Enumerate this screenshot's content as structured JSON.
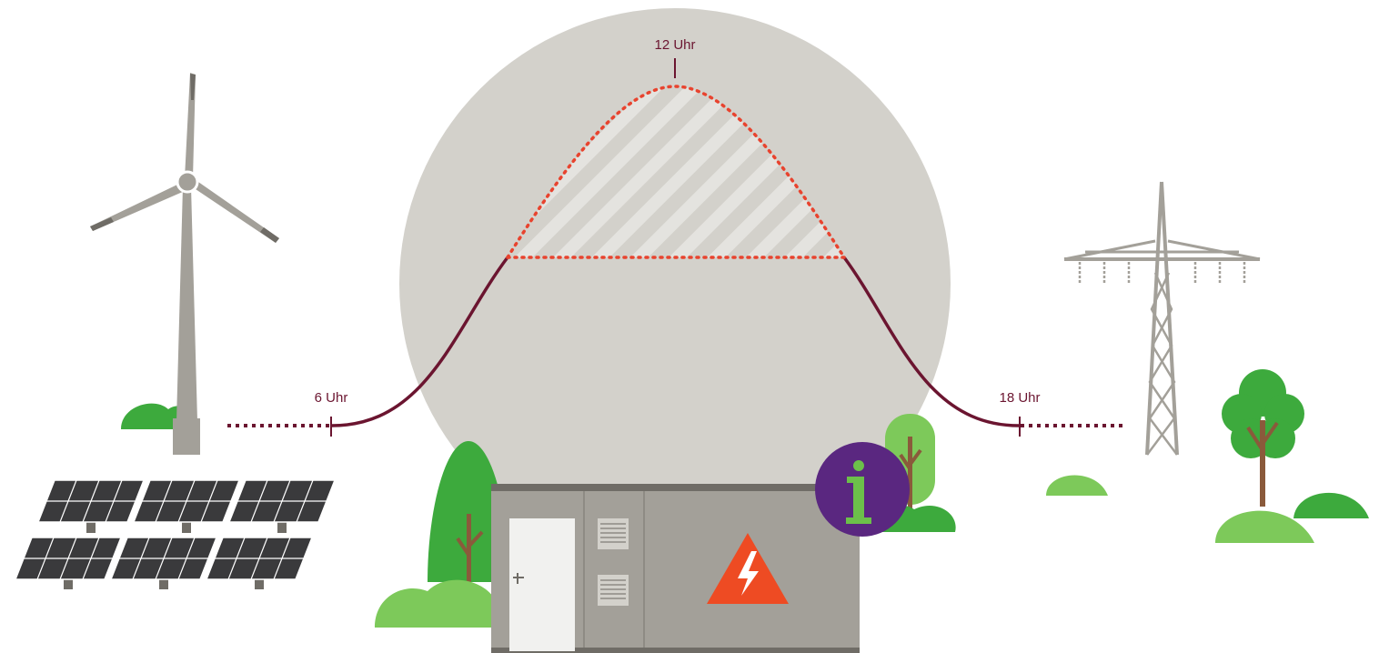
{
  "labels": {
    "morning": "6 Uhr",
    "noon": "12 Uhr",
    "evening": "18 Uhr"
  },
  "icons": {
    "info": "info-icon",
    "warning": "high-voltage-warning-icon"
  },
  "colors": {
    "curve": "#6b1530",
    "peak_dots": "#e8432e",
    "sun_disc": "#d3d1cb",
    "info_badge": "#5a2780",
    "info_glyph": "#6cc04a",
    "tree_dark": "#3daa3d",
    "tree_light": "#7dc95a",
    "container": "#a3a099",
    "warning": "#ee4b23"
  }
}
